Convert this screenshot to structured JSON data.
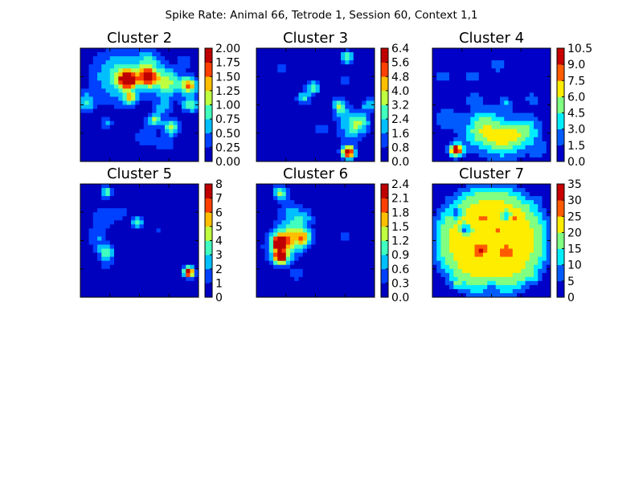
{
  "figure": {
    "suptitle": "Spike Rate: Animal 66, Tetrode 1, Session 60, Context 1,1"
  },
  "chart_data": [
    {
      "type": "heatmap",
      "title": "Cluster 2",
      "colorbar_ticks": [
        "0.00",
        "0.25",
        "0.50",
        "0.75",
        "1.00",
        "1.25",
        "1.50",
        "1.75",
        "2.00"
      ],
      "vmax": 2.0,
      "background": 0.05,
      "blobs": [
        {
          "x": 0.4,
          "y": 0.28,
          "value": 1.95,
          "spread": 0.05
        },
        {
          "x": 0.57,
          "y": 0.26,
          "value": 1.7,
          "spread": 0.05
        },
        {
          "x": 0.34,
          "y": 0.25,
          "value": 0.85,
          "spread": 0.16
        },
        {
          "x": 0.58,
          "y": 0.13,
          "value": 0.65,
          "spread": 0.07
        },
        {
          "x": 0.73,
          "y": 0.3,
          "value": 1.05,
          "spread": 0.09
        },
        {
          "x": 0.92,
          "y": 0.33,
          "value": 1.4,
          "spread": 0.05
        },
        {
          "x": 0.93,
          "y": 0.5,
          "value": 0.85,
          "spread": 0.05
        },
        {
          "x": 0.42,
          "y": 0.44,
          "value": 0.95,
          "spread": 0.04
        },
        {
          "x": 0.63,
          "y": 0.63,
          "value": 0.95,
          "spread": 0.04
        },
        {
          "x": 0.77,
          "y": 0.7,
          "value": 1.05,
          "spread": 0.05
        },
        {
          "x": 0.7,
          "y": 0.52,
          "value": 0.55,
          "spread": 0.05
        },
        {
          "x": 0.04,
          "y": 0.48,
          "value": 0.7,
          "spread": 0.06
        },
        {
          "x": 0.22,
          "y": 0.66,
          "value": 0.45,
          "spread": 0.04
        },
        {
          "x": 0.72,
          "y": 0.85,
          "value": 0.4,
          "spread": 0.05
        },
        {
          "x": 0.55,
          "y": 0.78,
          "value": 0.35,
          "spread": 0.07
        },
        {
          "x": 0.88,
          "y": 0.12,
          "value": 0.4,
          "spread": 0.04
        }
      ]
    },
    {
      "type": "heatmap",
      "title": "Cluster 3",
      "colorbar_ticks": [
        "0.0",
        "0.8",
        "1.6",
        "2.4",
        "3.2",
        "4.0",
        "4.8",
        "5.6",
        "6.4"
      ],
      "vmax": 6.4,
      "background": 0.1,
      "blobs": [
        {
          "x": 0.78,
          "y": 0.92,
          "value": 6.4,
          "spread": 0.04
        },
        {
          "x": 0.8,
          "y": 0.72,
          "value": 2.0,
          "spread": 0.08
        },
        {
          "x": 0.88,
          "y": 0.65,
          "value": 2.4,
          "spread": 0.06
        },
        {
          "x": 0.73,
          "y": 0.57,
          "value": 1.4,
          "spread": 0.06
        },
        {
          "x": 0.55,
          "y": 0.72,
          "value": 1.0,
          "spread": 0.05
        },
        {
          "x": 0.48,
          "y": 0.35,
          "value": 3.0,
          "spread": 0.04
        },
        {
          "x": 0.7,
          "y": 0.5,
          "value": 2.6,
          "spread": 0.04
        },
        {
          "x": 0.4,
          "y": 0.44,
          "value": 2.4,
          "spread": 0.04
        },
        {
          "x": 0.77,
          "y": 0.08,
          "value": 3.0,
          "spread": 0.04
        },
        {
          "x": 0.95,
          "y": 0.5,
          "value": 2.4,
          "spread": 0.04
        },
        {
          "x": 0.2,
          "y": 0.18,
          "value": 1.2,
          "spread": 0.04
        },
        {
          "x": 0.75,
          "y": 0.28,
          "value": 1.4,
          "spread": 0.04
        },
        {
          "x": 0.25,
          "y": 0.72,
          "value": 0.9,
          "spread": 0.03
        }
      ]
    },
    {
      "type": "heatmap",
      "title": "Cluster 4",
      "colorbar_ticks": [
        "0.0",
        "1.5",
        "3.0",
        "4.5",
        "6.0",
        "7.5",
        "9.0",
        "10.5"
      ],
      "vmax": 10.5,
      "background": 0.3,
      "blobs": [
        {
          "x": 0.2,
          "y": 0.9,
          "value": 10.5,
          "spread": 0.04
        },
        {
          "x": 0.58,
          "y": 0.8,
          "value": 5.5,
          "spread": 0.12
        },
        {
          "x": 0.78,
          "y": 0.74,
          "value": 4.0,
          "spread": 0.1
        },
        {
          "x": 0.38,
          "y": 0.74,
          "value": 3.8,
          "spread": 0.1
        },
        {
          "x": 0.12,
          "y": 0.62,
          "value": 2.2,
          "spread": 0.08
        },
        {
          "x": 0.35,
          "y": 0.45,
          "value": 2.4,
          "spread": 0.05
        },
        {
          "x": 0.35,
          "y": 0.25,
          "value": 2.0,
          "spread": 0.05
        },
        {
          "x": 0.1,
          "y": 0.25,
          "value": 1.6,
          "spread": 0.07
        },
        {
          "x": 0.55,
          "y": 0.15,
          "value": 1.6,
          "spread": 0.07
        },
        {
          "x": 0.62,
          "y": 0.48,
          "value": 2.6,
          "spread": 0.04
        },
        {
          "x": 0.45,
          "y": 0.6,
          "value": 2.0,
          "spread": 0.08
        },
        {
          "x": 0.85,
          "y": 0.45,
          "value": 1.8,
          "spread": 0.05
        },
        {
          "x": 0.9,
          "y": 0.9,
          "value": 1.8,
          "spread": 0.05
        }
      ]
    },
    {
      "type": "heatmap",
      "title": "Cluster 5",
      "colorbar_ticks": [
        "0",
        "1",
        "2",
        "3",
        "4",
        "5",
        "6",
        "7",
        "8"
      ],
      "vmax": 8,
      "background": 0.1,
      "blobs": [
        {
          "x": 0.92,
          "y": 0.78,
          "value": 8.0,
          "spread": 0.035
        },
        {
          "x": 0.22,
          "y": 0.6,
          "value": 3.6,
          "spread": 0.05
        },
        {
          "x": 0.14,
          "y": 0.48,
          "value": 1.8,
          "spread": 0.06
        },
        {
          "x": 0.18,
          "y": 0.3,
          "value": 1.6,
          "spread": 0.08
        },
        {
          "x": 0.22,
          "y": 0.72,
          "value": 1.3,
          "spread": 0.05
        },
        {
          "x": 0.22,
          "y": 0.07,
          "value": 3.6,
          "spread": 0.035
        },
        {
          "x": 0.48,
          "y": 0.34,
          "value": 3.2,
          "spread": 0.04
        },
        {
          "x": 0.34,
          "y": 0.26,
          "value": 1.3,
          "spread": 0.05
        },
        {
          "x": 0.66,
          "y": 0.4,
          "value": 1.1,
          "spread": 0.03
        }
      ]
    },
    {
      "type": "heatmap",
      "title": "Cluster 6",
      "colorbar_ticks": [
        "0.0",
        "0.3",
        "0.6",
        "0.9",
        "1.2",
        "1.5",
        "1.8",
        "2.1",
        "2.4"
      ],
      "vmax": 2.4,
      "background": 0.05,
      "blobs": [
        {
          "x": 0.2,
          "y": 0.52,
          "value": 2.4,
          "spread": 0.04
        },
        {
          "x": 0.2,
          "y": 0.65,
          "value": 2.0,
          "spread": 0.04
        },
        {
          "x": 0.23,
          "y": 0.55,
          "value": 1.2,
          "spread": 0.1
        },
        {
          "x": 0.4,
          "y": 0.48,
          "value": 1.4,
          "spread": 0.05
        },
        {
          "x": 0.29,
          "y": 0.42,
          "value": 0.8,
          "spread": 0.08
        },
        {
          "x": 0.4,
          "y": 0.3,
          "value": 0.7,
          "spread": 0.06
        },
        {
          "x": 0.2,
          "y": 0.08,
          "value": 1.4,
          "spread": 0.04
        },
        {
          "x": 0.28,
          "y": 0.24,
          "value": 0.6,
          "spread": 0.06
        },
        {
          "x": 0.75,
          "y": 0.45,
          "value": 0.6,
          "spread": 0.03
        },
        {
          "x": 0.35,
          "y": 0.8,
          "value": 0.45,
          "spread": 0.04
        }
      ]
    },
    {
      "type": "heatmap",
      "title": "Cluster 7",
      "colorbar_ticks": [
        "0",
        "5",
        "10",
        "15",
        "20",
        "25",
        "30",
        "35"
      ],
      "vmax": 35,
      "background": 0,
      "plateau": {
        "cx": 0.5,
        "cy": 0.5,
        "radius": 0.47,
        "level": 22
      },
      "blobs": [
        {
          "x": 0.4,
          "y": 0.58,
          "value": 9,
          "spread": 0.04
        },
        {
          "x": 0.62,
          "y": 0.6,
          "value": 8,
          "spread": 0.035
        },
        {
          "x": 0.42,
          "y": 0.3,
          "value": 6,
          "spread": 0.03
        },
        {
          "x": 0.7,
          "y": 0.3,
          "value": 6,
          "spread": 0.025
        },
        {
          "x": 0.55,
          "y": 0.4,
          "value": 5,
          "spread": 0.025
        },
        {
          "x": 0.2,
          "y": 0.88,
          "value": 6,
          "spread": 0.03
        },
        {
          "x": 0.85,
          "y": 0.82,
          "value": 5,
          "spread": 0.03
        },
        {
          "x": 0.9,
          "y": 0.15,
          "value": 4,
          "spread": 0.03
        }
      ],
      "dips": [
        {
          "x": 0.2,
          "y": 0.26,
          "value": 14,
          "spread": 0.03
        },
        {
          "x": 0.28,
          "y": 0.4,
          "value": 16,
          "spread": 0.03
        },
        {
          "x": 0.62,
          "y": 0.28,
          "value": 12,
          "spread": 0.025
        },
        {
          "x": 0.5,
          "y": 0.92,
          "value": 8,
          "spread": 0.05
        }
      ]
    }
  ]
}
